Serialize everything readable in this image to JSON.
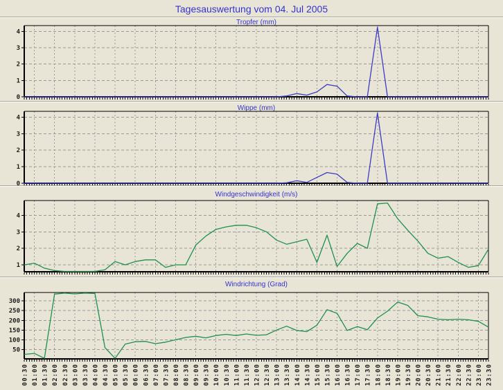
{
  "page": {
    "title": "Tagesauswertung vom 04. Jul 2005",
    "title_color": "#3333cc",
    "background": "#e8e5d6"
  },
  "chart_data": {
    "layout": "4 stacked line panels sharing one x axis, grid on, no legend",
    "x_axis": "time of day, 30-minute steps",
    "categories": [
      "00:30",
      "01:00",
      "01:30",
      "02:00",
      "02:30",
      "03:00",
      "03:30",
      "04:00",
      "04:30",
      "05:00",
      "05:30",
      "06:00",
      "06:30",
      "07:00",
      "07:30",
      "08:00",
      "08:30",
      "09:00",
      "09:30",
      "10:00",
      "10:30",
      "11:00",
      "11:30",
      "12:00",
      "12:30",
      "13:00",
      "13:30",
      "14:00",
      "14:30",
      "15:00",
      "15:30",
      "16:00",
      "16:30",
      "17:00",
      "17:30",
      "18:00",
      "18:30",
      "19:00",
      "19:30",
      "20:00",
      "20:30",
      "21:00",
      "21:30",
      "22:00",
      "22:30",
      "23:00",
      "23:30"
    ],
    "charts": [
      {
        "title": "Tropfer (mm)",
        "type": "line",
        "color": "#3b3bc4",
        "ylim": [
          0,
          4.35
        ],
        "yticks": [
          0,
          1,
          2,
          3,
          4
        ],
        "show_x_labels": false,
        "values": [
          0,
          0,
          0,
          0,
          0,
          0,
          0,
          0,
          0,
          0,
          0,
          0,
          0,
          0,
          0,
          0,
          0,
          0,
          0,
          0,
          0,
          0,
          0,
          0,
          0,
          0,
          0.05,
          0.2,
          0.1,
          0.3,
          0.75,
          0.65,
          0.05,
          0,
          0,
          4.25,
          0,
          0,
          0,
          0,
          0,
          0,
          0,
          0,
          0,
          0,
          0
        ]
      },
      {
        "title": "Wippe (mm)",
        "type": "line",
        "color": "#3b3bc4",
        "ylim": [
          0,
          4.35
        ],
        "yticks": [
          0,
          1,
          2,
          3,
          4
        ],
        "show_x_labels": false,
        "values": [
          0,
          0,
          0,
          0,
          0,
          0,
          0,
          0,
          0,
          0,
          0,
          0,
          0,
          0,
          0,
          0,
          0,
          0,
          0,
          0,
          0,
          0,
          0,
          0,
          0,
          0,
          0.03,
          0.15,
          0.05,
          0.35,
          0.65,
          0.55,
          0.05,
          0,
          0,
          4.25,
          0,
          0,
          0,
          0,
          0,
          0,
          0,
          0,
          0,
          0,
          0
        ]
      },
      {
        "title": "Windgeschwindigkeit (m/s)",
        "type": "line",
        "color": "#1e8f4e",
        "ylim": [
          0.58,
          4.9
        ],
        "yticks": [
          1,
          2,
          3,
          4
        ],
        "show_x_labels": false,
        "values": [
          1.0,
          1.1,
          0.8,
          0.65,
          0.6,
          0.6,
          0.6,
          0.6,
          0.7,
          1.2,
          1.0,
          1.2,
          1.3,
          1.3,
          0.85,
          1.0,
          1.0,
          2.2,
          2.75,
          3.15,
          3.3,
          3.4,
          3.4,
          3.25,
          3.0,
          2.5,
          2.25,
          2.4,
          2.55,
          1.15,
          2.8,
          0.9,
          1.7,
          2.3,
          2.0,
          4.7,
          4.75,
          3.8,
          3.1,
          2.45,
          1.7,
          1.4,
          1.5,
          1.15,
          0.85,
          0.95,
          1.95
        ]
      },
      {
        "title": "Windrichtung (Grad)",
        "type": "line",
        "color": "#1e8f4e",
        "ylim": [
          2,
          343
        ],
        "yticks": [
          50,
          100,
          150,
          200,
          250,
          300
        ],
        "show_x_labels": true,
        "values": [
          25,
          30,
          5,
          335,
          340,
          336,
          340,
          338,
          60,
          5,
          78,
          90,
          92,
          80,
          88,
          100,
          112,
          118,
          110,
          122,
          128,
          122,
          130,
          123,
          126,
          150,
          170,
          148,
          142,
          175,
          255,
          236,
          148,
          168,
          152,
          212,
          247,
          294,
          277,
          224,
          218,
          206,
          203,
          206,
          203,
          195,
          165
        ]
      }
    ]
  },
  "style": {
    "grid_color": "#999999",
    "axis_color": "#000000",
    "tick_label_color": "#1c1c1c"
  }
}
